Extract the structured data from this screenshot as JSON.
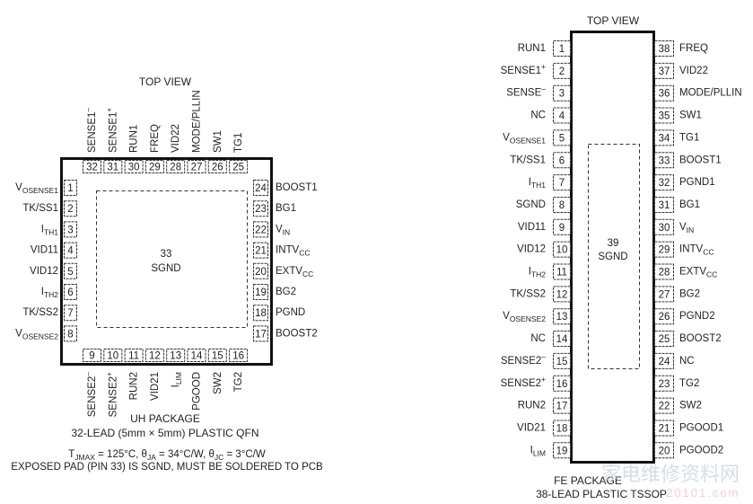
{
  "qfn": {
    "top_view": "TOP VIEW",
    "pad": {
      "number": "33",
      "name": "SGND"
    },
    "top": [
      {
        "n": "32",
        "label": [
          {
            "t": "SENSE1"
          },
          {
            "t": "–",
            "k": "sup"
          }
        ]
      },
      {
        "n": "31",
        "label": [
          {
            "t": "SENSE1"
          },
          {
            "t": "+",
            "k": "sup"
          }
        ]
      },
      {
        "n": "30",
        "label": [
          {
            "t": "RUN1"
          }
        ]
      },
      {
        "n": "29",
        "label": [
          {
            "t": "FREQ"
          }
        ]
      },
      {
        "n": "28",
        "label": [
          {
            "t": "VID22"
          }
        ]
      },
      {
        "n": "27",
        "label": [
          {
            "t": "MODE/PLLIN"
          }
        ]
      },
      {
        "n": "26",
        "label": [
          {
            "t": "SW1"
          }
        ]
      },
      {
        "n": "25",
        "label": [
          {
            "t": "TG1"
          }
        ]
      }
    ],
    "left": [
      {
        "n": "1",
        "label": [
          {
            "t": "V"
          },
          {
            "t": "OSENSE1",
            "k": "sub"
          }
        ]
      },
      {
        "n": "2",
        "label": [
          {
            "t": "TK/SS1"
          }
        ]
      },
      {
        "n": "3",
        "label": [
          {
            "t": "I"
          },
          {
            "t": "TH1",
            "k": "sub"
          }
        ]
      },
      {
        "n": "4",
        "label": [
          {
            "t": "VID11"
          }
        ]
      },
      {
        "n": "5",
        "label": [
          {
            "t": "VID12"
          }
        ]
      },
      {
        "n": "6",
        "label": [
          {
            "t": "I"
          },
          {
            "t": "TH2",
            "k": "sub"
          }
        ]
      },
      {
        "n": "7",
        "label": [
          {
            "t": "TK/SS2"
          }
        ]
      },
      {
        "n": "8",
        "label": [
          {
            "t": "V"
          },
          {
            "t": "OSENSE2",
            "k": "sub"
          }
        ]
      }
    ],
    "right": [
      {
        "n": "24",
        "label": [
          {
            "t": "BOOST1"
          }
        ]
      },
      {
        "n": "23",
        "label": [
          {
            "t": "BG1"
          }
        ]
      },
      {
        "n": "22",
        "label": [
          {
            "t": "V"
          },
          {
            "t": "IN",
            "k": "sub"
          }
        ]
      },
      {
        "n": "21",
        "label": [
          {
            "t": "INTV"
          },
          {
            "t": "CC",
            "k": "sub"
          }
        ]
      },
      {
        "n": "20",
        "label": [
          {
            "t": "EXTV"
          },
          {
            "t": "CC",
            "k": "sub"
          }
        ]
      },
      {
        "n": "19",
        "label": [
          {
            "t": "BG2"
          }
        ]
      },
      {
        "n": "18",
        "label": [
          {
            "t": "PGND"
          }
        ]
      },
      {
        "n": "17",
        "label": [
          {
            "t": "BOOST2"
          }
        ]
      }
    ],
    "bottom": [
      {
        "n": "9",
        "label": [
          {
            "t": "SENSE2"
          },
          {
            "t": "–",
            "k": "sup"
          }
        ]
      },
      {
        "n": "10",
        "label": [
          {
            "t": "SENSE2"
          },
          {
            "t": "+",
            "k": "sup"
          }
        ]
      },
      {
        "n": "11",
        "label": [
          {
            "t": "RUN2"
          }
        ]
      },
      {
        "n": "12",
        "label": [
          {
            "t": "VID21"
          }
        ]
      },
      {
        "n": "13",
        "label": [
          {
            "t": "I"
          },
          {
            "t": "LIM",
            "k": "sub"
          }
        ]
      },
      {
        "n": "14",
        "label": [
          {
            "t": "PGOOD"
          }
        ]
      },
      {
        "n": "15",
        "label": [
          {
            "t": "SW2"
          }
        ]
      },
      {
        "n": "16",
        "label": [
          {
            "t": "TG2"
          }
        ]
      }
    ],
    "package": "UH PACKAGE",
    "package_desc": "32-LEAD (5mm × 5mm) PLASTIC QFN",
    "thermal": [
      {
        "t": "T"
      },
      {
        "t": "JMAX",
        "k": "sub"
      },
      {
        "t": " = 125°C, θ"
      },
      {
        "t": "JA",
        "k": "sub"
      },
      {
        "t": " = 34°C/W, θ"
      },
      {
        "t": "JC",
        "k": "sub"
      },
      {
        "t": " = 3°C/W"
      }
    ],
    "note": "EXPOSED PAD (PIN 33) IS SGND, MUST BE SOLDERED TO PCB"
  },
  "tssop": {
    "top_view": "TOP VIEW",
    "pad": {
      "number": "39",
      "name": "SGND"
    },
    "left": [
      {
        "n": "1",
        "label": [
          {
            "t": "RUN1"
          }
        ]
      },
      {
        "n": "2",
        "label": [
          {
            "t": "SENSE1"
          },
          {
            "t": "+",
            "k": "sup"
          }
        ]
      },
      {
        "n": "3",
        "label": [
          {
            "t": "SENSE"
          },
          {
            "t": "–",
            "k": "sup"
          }
        ]
      },
      {
        "n": "4",
        "label": [
          {
            "t": "NC"
          }
        ]
      },
      {
        "n": "5",
        "label": [
          {
            "t": "V"
          },
          {
            "t": "OSENSE1",
            "k": "sub"
          }
        ]
      },
      {
        "n": "6",
        "label": [
          {
            "t": "TK/SS1"
          }
        ]
      },
      {
        "n": "7",
        "label": [
          {
            "t": "I"
          },
          {
            "t": "TH1",
            "k": "sub"
          }
        ]
      },
      {
        "n": "8",
        "label": [
          {
            "t": "SGND"
          }
        ]
      },
      {
        "n": "9",
        "label": [
          {
            "t": "VID11"
          }
        ]
      },
      {
        "n": "10",
        "label": [
          {
            "t": "VID12"
          }
        ]
      },
      {
        "n": "11",
        "label": [
          {
            "t": "I"
          },
          {
            "t": "TH2",
            "k": "sub"
          }
        ]
      },
      {
        "n": "12",
        "label": [
          {
            "t": "TK/SS2"
          }
        ]
      },
      {
        "n": "13",
        "label": [
          {
            "t": "V"
          },
          {
            "t": "OSENSE2",
            "k": "sub"
          }
        ]
      },
      {
        "n": "14",
        "label": [
          {
            "t": "NC"
          }
        ]
      },
      {
        "n": "15",
        "label": [
          {
            "t": "SENSE2"
          },
          {
            "t": "–",
            "k": "sup"
          }
        ]
      },
      {
        "n": "16",
        "label": [
          {
            "t": "SENSE2"
          },
          {
            "t": "+",
            "k": "sup"
          }
        ]
      },
      {
        "n": "17",
        "label": [
          {
            "t": "RUN2"
          }
        ]
      },
      {
        "n": "18",
        "label": [
          {
            "t": "VID21"
          }
        ]
      },
      {
        "n": "19",
        "label": [
          {
            "t": "I"
          },
          {
            "t": "LIM",
            "k": "sub"
          }
        ]
      }
    ],
    "right": [
      {
        "n": "38",
        "label": [
          {
            "t": "FREQ"
          }
        ]
      },
      {
        "n": "37",
        "label": [
          {
            "t": "VID22"
          }
        ]
      },
      {
        "n": "36",
        "label": [
          {
            "t": "MODE/PLLIN"
          }
        ]
      },
      {
        "n": "35",
        "label": [
          {
            "t": "SW1"
          }
        ]
      },
      {
        "n": "34",
        "label": [
          {
            "t": "TG1"
          }
        ]
      },
      {
        "n": "33",
        "label": [
          {
            "t": "BOOST1"
          }
        ]
      },
      {
        "n": "32",
        "label": [
          {
            "t": "PGND1"
          }
        ]
      },
      {
        "n": "31",
        "label": [
          {
            "t": "BG1"
          }
        ]
      },
      {
        "n": "30",
        "label": [
          {
            "t": "V"
          },
          {
            "t": "IN",
            "k": "sub"
          }
        ]
      },
      {
        "n": "29",
        "label": [
          {
            "t": "INTV"
          },
          {
            "t": "CC",
            "k": "sub"
          }
        ]
      },
      {
        "n": "28",
        "label": [
          {
            "t": "EXTV"
          },
          {
            "t": "CC",
            "k": "sub"
          }
        ]
      },
      {
        "n": "27",
        "label": [
          {
            "t": "BG2"
          }
        ]
      },
      {
        "n": "26",
        "label": [
          {
            "t": "PGND2"
          }
        ]
      },
      {
        "n": "25",
        "label": [
          {
            "t": "BOOST2"
          }
        ]
      },
      {
        "n": "24",
        "label": [
          {
            "t": "NC"
          }
        ]
      },
      {
        "n": "23",
        "label": [
          {
            "t": "TG2"
          }
        ]
      },
      {
        "n": "22",
        "label": [
          {
            "t": "SW2"
          }
        ]
      },
      {
        "n": "21",
        "label": [
          {
            "t": "PGOOD1"
          }
        ]
      },
      {
        "n": "20",
        "label": [
          {
            "t": "PGOOD2"
          }
        ]
      }
    ],
    "package": "FE PACKAGE",
    "package_desc": "38-LEAD PLASTIC TSSOP"
  },
  "watermark": {
    "text": "家电维修资料网",
    "url": "20101.com"
  }
}
